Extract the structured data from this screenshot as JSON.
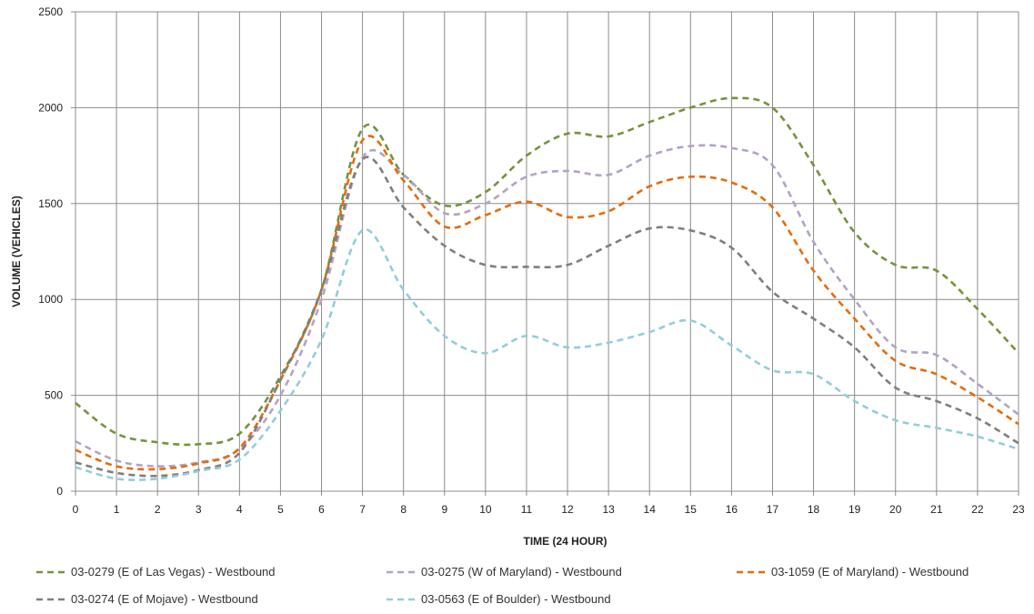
{
  "chart_data": {
    "type": "line",
    "title": "",
    "xlabel": "TIME (24 HOUR)",
    "ylabel": "VOLUME (VEHICLES)",
    "xlim": [
      0,
      23
    ],
    "ylim": [
      0,
      2500
    ],
    "x_ticks": [
      0,
      1,
      2,
      3,
      4,
      5,
      6,
      7,
      8,
      9,
      10,
      11,
      12,
      13,
      14,
      15,
      16,
      17,
      18,
      19,
      20,
      21,
      22,
      23
    ],
    "y_ticks": [
      0,
      500,
      1000,
      1500,
      2000,
      2500
    ],
    "grid": true,
    "legend_position": "bottom",
    "x": [
      0,
      1,
      2,
      3,
      4,
      5,
      6,
      7,
      8,
      9,
      10,
      11,
      12,
      13,
      14,
      15,
      16,
      17,
      18,
      19,
      20,
      21,
      22,
      23
    ],
    "series": [
      {
        "name": "03-0279 (E of Las Vegas) - Westbound",
        "color": "#76923c",
        "values": [
          460,
          300,
          255,
          245,
          300,
          600,
          1050,
          1890,
          1650,
          1490,
          1560,
          1750,
          1865,
          1850,
          1925,
          2000,
          2050,
          2000,
          1700,
          1350,
          1180,
          1150,
          950,
          720
        ]
      },
      {
        "name": "03-0275 (W of Maryland) - Westbound",
        "color": "#b3a2c7",
        "values": [
          260,
          160,
          130,
          150,
          220,
          500,
          1000,
          1740,
          1650,
          1450,
          1500,
          1640,
          1670,
          1650,
          1750,
          1800,
          1790,
          1700,
          1300,
          1000,
          750,
          710,
          560,
          400
        ]
      },
      {
        "name": "03-1059 (E of Maryland) - Westbound",
        "color": "#e46c0a",
        "values": [
          215,
          130,
          115,
          145,
          225,
          580,
          1050,
          1830,
          1620,
          1380,
          1440,
          1510,
          1430,
          1460,
          1590,
          1640,
          1610,
          1480,
          1150,
          900,
          680,
          610,
          490,
          350
        ]
      },
      {
        "name": "03-0274 (E of Mojave) - Westbound",
        "color": "#7f7f7f",
        "values": [
          150,
          95,
          80,
          110,
          200,
          580,
          1050,
          1730,
          1480,
          1280,
          1180,
          1170,
          1180,
          1280,
          1370,
          1360,
          1270,
          1040,
          900,
          750,
          540,
          470,
          380,
          250
        ]
      },
      {
        "name": "03-0563 (E of Boulder) - Westbound",
        "color": "#92cddc",
        "values": [
          125,
          65,
          65,
          105,
          165,
          420,
          790,
          1360,
          1050,
          810,
          720,
          810,
          750,
          775,
          830,
          890,
          760,
          630,
          610,
          470,
          370,
          330,
          285,
          220
        ]
      }
    ]
  }
}
